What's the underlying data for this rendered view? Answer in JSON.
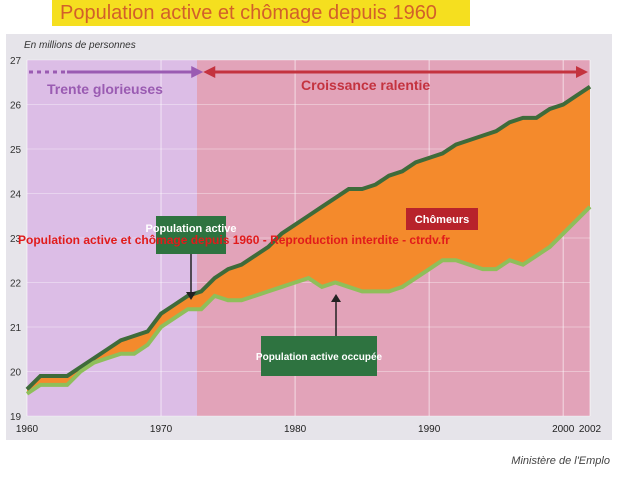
{
  "title": "Population active et chômage depuis 1960",
  "source": "Ministère de l'Emplo",
  "watermark": "Population active et chômage depuis 1960 - Reproduction interdite - ctrdv.fr",
  "chart_data": {
    "type": "area",
    "ylabel": "En millions de personnes",
    "xlim": [
      1960,
      2002
    ],
    "ylim": [
      19,
      27
    ],
    "x_ticks": [
      "1960",
      "1970",
      "1980",
      "1990",
      "2000",
      "2002"
    ],
    "y_ticks": [
      "19",
      "20",
      "21",
      "22",
      "23",
      "24",
      "25",
      "26",
      "27"
    ],
    "periods": [
      {
        "label": "Trente glorieuses",
        "start": 1960,
        "end": 1973
      },
      {
        "label": "Croissance ralentie",
        "start": 1973,
        "end": 2002
      }
    ],
    "annotations": [
      "Population active",
      "Population active occupée",
      "Chômeurs"
    ],
    "x": [
      1960,
      1961,
      1962,
      1963,
      1964,
      1965,
      1966,
      1967,
      1968,
      1969,
      1970,
      1971,
      1972,
      1973,
      1974,
      1975,
      1976,
      1977,
      1978,
      1979,
      1980,
      1981,
      1982,
      1983,
      1984,
      1985,
      1986,
      1987,
      1988,
      1989,
      1990,
      1991,
      1992,
      1993,
      1994,
      1995,
      1996,
      1997,
      1998,
      1999,
      2000,
      2001,
      2002
    ],
    "series": [
      {
        "name": "Population active",
        "values": [
          19.6,
          19.9,
          19.9,
          19.9,
          20.1,
          20.3,
          20.5,
          20.7,
          20.8,
          20.9,
          21.3,
          21.5,
          21.7,
          21.8,
          22.1,
          22.3,
          22.4,
          22.6,
          22.8,
          23.1,
          23.3,
          23.5,
          23.7,
          23.9,
          24.1,
          24.1,
          24.2,
          24.4,
          24.5,
          24.7,
          24.8,
          24.9,
          25.1,
          25.2,
          25.3,
          25.4,
          25.6,
          25.7,
          25.7,
          25.9,
          26.0,
          26.2,
          26.4
        ]
      },
      {
        "name": "Population active occupée",
        "values": [
          19.5,
          19.7,
          19.7,
          19.7,
          20.0,
          20.2,
          20.3,
          20.4,
          20.4,
          20.6,
          21.0,
          21.2,
          21.4,
          21.4,
          21.7,
          21.6,
          21.6,
          21.7,
          21.8,
          21.9,
          22.0,
          22.1,
          21.9,
          22.0,
          21.9,
          21.8,
          21.8,
          21.8,
          21.9,
          22.1,
          22.3,
          22.5,
          22.5,
          22.4,
          22.3,
          22.3,
          22.5,
          22.4,
          22.6,
          22.8,
          23.1,
          23.4,
          23.7
        ]
      }
    ],
    "colors": {
      "chomeurs_area": "#f48a2c",
      "active_line": "#3e6b3a",
      "occupee_line": "#8fbf5a",
      "period_glorieuses": "#9a5bb2",
      "period_ralentie": "#c4333f",
      "callout_bg": "#2e7340",
      "bg_pre": "#dcbde6",
      "bg_post": "#e2a3b9"
    }
  }
}
